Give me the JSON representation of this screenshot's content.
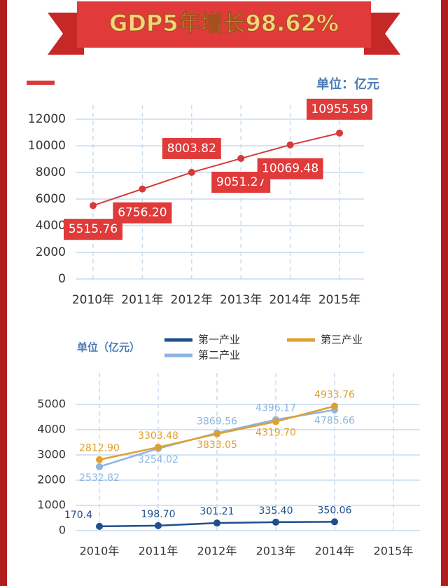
{
  "chart_data": [
    {
      "type": "line",
      "title": "GDP5年增长98.62%",
      "unit_label": "单位：亿元",
      "categories": [
        "2010年",
        "2011年",
        "2012年",
        "2013年",
        "2014年",
        "2015年"
      ],
      "series": [
        {
          "name": "GDP",
          "color": "#d83a3a",
          "values": [
            5515.76,
            6756.2,
            8003.82,
            9051.27,
            10069.48,
            10955.59
          ],
          "value_labels": [
            "5515.76",
            "6756.20",
            "8003.82",
            "9051.27",
            "10069.48",
            "10955.59"
          ]
        }
      ],
      "ylim": [
        0,
        12000
      ],
      "yticks": [
        0,
        2000,
        4000,
        6000,
        8000,
        10000,
        12000
      ],
      "grid": true
    },
    {
      "type": "line",
      "unit_label": "单位（亿元）",
      "categories": [
        "2010年",
        "2011年",
        "2012年",
        "2013年",
        "2014年",
        "2015年"
      ],
      "series": [
        {
          "name": "第一产业",
          "color": "#1f4e8c",
          "values": [
            170.4,
            198.7,
            301.21,
            335.4,
            350.06,
            null
          ],
          "value_labels": [
            "170.4",
            "198.70",
            "301.21",
            "335.40",
            "350.06",
            null
          ]
        },
        {
          "name": "第二产业",
          "color": "#8db4e2",
          "values": [
            2532.82,
            3254.02,
            3869.56,
            4396.17,
            4785.66,
            null
          ],
          "value_labels": [
            "2532.82",
            "3254.02",
            "3869.56",
            "4396.17",
            "4785.66",
            null
          ]
        },
        {
          "name": "第三产业",
          "color": "#e0a030",
          "values": [
            2812.9,
            3303.48,
            3833.05,
            4319.7,
            4933.76,
            null
          ],
          "value_labels": [
            "2812.90",
            "3303.48",
            "3833.05",
            "4319.70",
            "4933.76",
            null
          ]
        }
      ],
      "ylim": [
        0,
        5000
      ],
      "yticks": [
        0,
        1000,
        2000,
        3000,
        4000,
        5000
      ],
      "grid": true
    }
  ]
}
